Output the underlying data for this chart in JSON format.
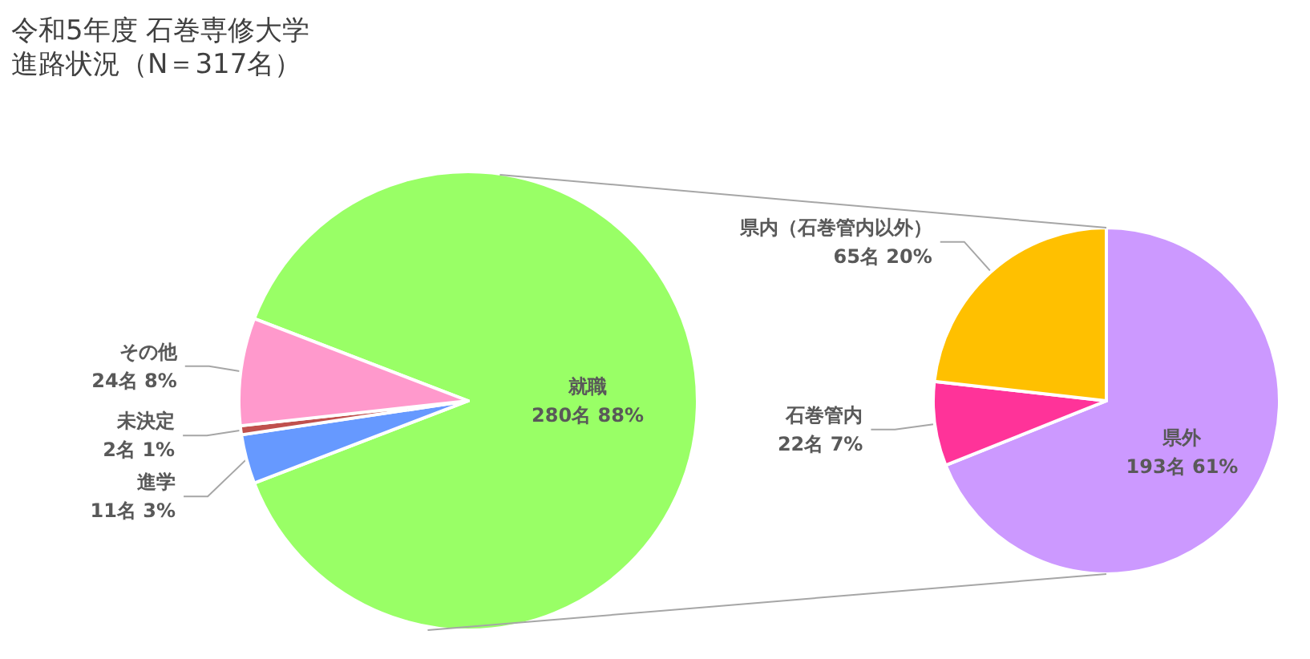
{
  "chart_data": [
    {
      "type": "pie",
      "title": "令和5年度 石巻専修大学",
      "subtitle": "進路状況（N＝317名）",
      "categories": [
        "就職",
        "進学",
        "未決定",
        "その他"
      ],
      "values": [
        280,
        11,
        2,
        24
      ],
      "colors": [
        "#99ff66",
        "#6699ff",
        "#c0504d",
        "#ff99cc"
      ],
      "value_labels": [
        "280名 88%",
        "11名 3%",
        "2名 1%",
        "24名 8%"
      ]
    },
    {
      "type": "pie",
      "categories": [
        "県外",
        "石巻管内",
        "県内（石巻管内以外）"
      ],
      "values": [
        193,
        22,
        65
      ],
      "colors": [
        "#cc99ff",
        "#ff3399",
        "#ffc000"
      ],
      "value_labels": [
        "193名 61%",
        "22名 7%",
        "65名 20%"
      ]
    }
  ]
}
